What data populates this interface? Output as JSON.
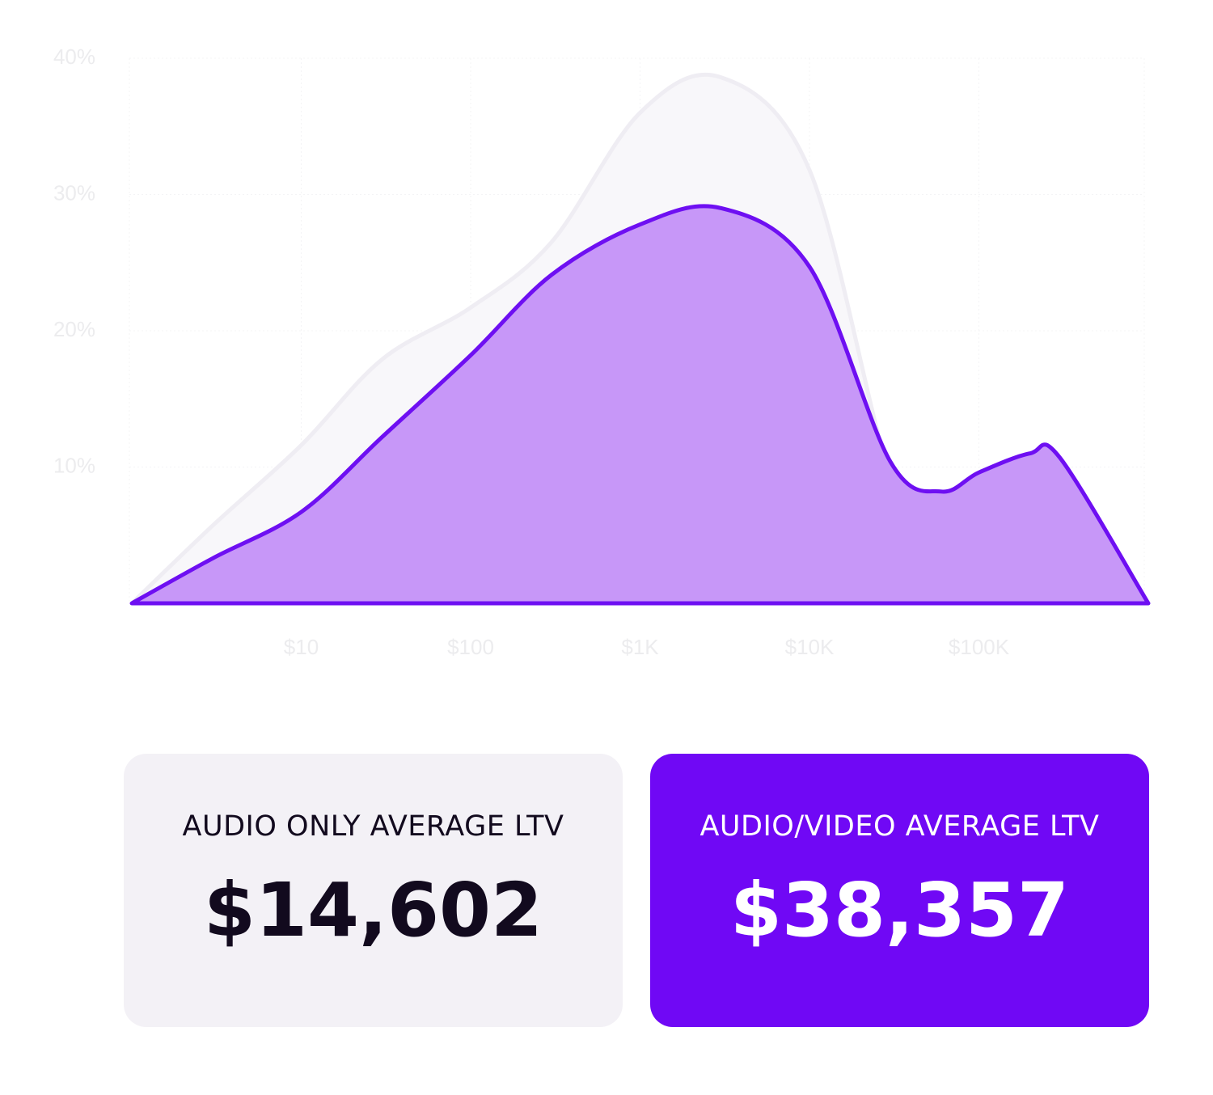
{
  "chart_data": {
    "type": "area",
    "x": [
      1,
      3,
      10,
      30,
      100,
      300,
      1000,
      3000,
      10000,
      30000,
      60000,
      100000,
      200000,
      300000,
      1000000
    ],
    "xscale": "log",
    "xlim": [
      1,
      1000000
    ],
    "xticks": [
      {
        "value": 10,
        "label": "$10"
      },
      {
        "value": 100,
        "label": "$100"
      },
      {
        "value": 1000,
        "label": "$1K"
      },
      {
        "value": 10000,
        "label": "$10K"
      },
      {
        "value": 100000,
        "label": "$100K"
      }
    ],
    "ylim": [
      0,
      40
    ],
    "yticks": [
      {
        "value": 10,
        "label": "10%"
      },
      {
        "value": 20,
        "label": "20%"
      },
      {
        "value": 30,
        "label": "30%"
      },
      {
        "value": 40,
        "label": "40%"
      }
    ],
    "grid": true,
    "series": [
      {
        "color": "#efedf3",
        "fill": "#f8f7fa",
        "values": [
          0,
          5.7,
          11.6,
          17.9,
          21.7,
          26.5,
          36,
          38.6,
          31.8,
          9.3,
          3.6,
          3.3,
          3.1,
          2.4,
          0
        ]
      },
      {
        "color": "#6e0ff2",
        "fill": "#c797f8",
        "values": [
          0,
          3.3,
          6.7,
          12.2,
          18.2,
          24.1,
          27.8,
          29,
          24.7,
          10.4,
          8.2,
          9.6,
          11,
          10.7,
          0
        ]
      }
    ]
  },
  "cards": [
    {
      "label": "AUDIO ONLY AVERAGE LTV",
      "value": "$14,602"
    },
    {
      "label": "AUDIO/VIDEO AVERAGE LTV",
      "value": "$38,357"
    }
  ]
}
